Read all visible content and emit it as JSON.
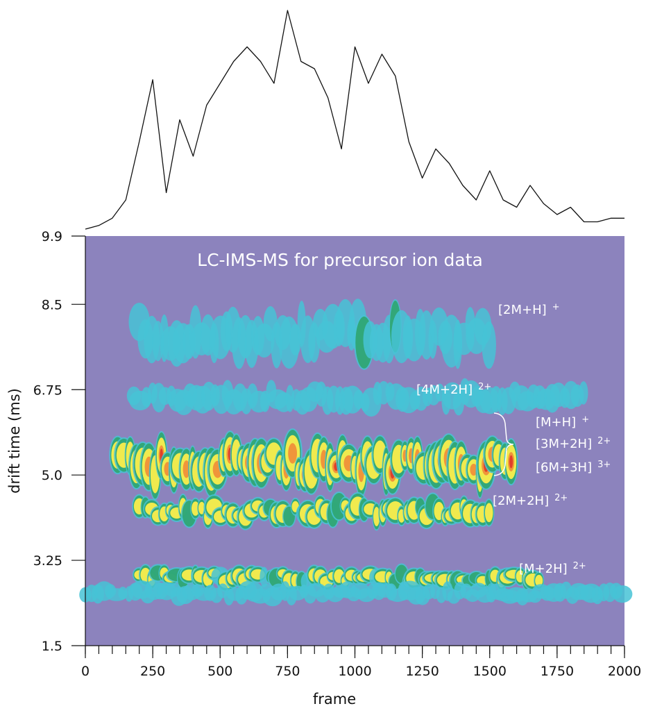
{
  "chart_data": [
    {
      "type": "line",
      "color": "#111111",
      "x": [
        0,
        50,
        100,
        150,
        200,
        250,
        300,
        350,
        400,
        450,
        500,
        550,
        600,
        650,
        700,
        750,
        800,
        850,
        900,
        950,
        1000,
        1050,
        1100,
        1150,
        1200,
        1250,
        1300,
        1350,
        1400,
        1450,
        1500,
        1550,
        1600,
        1650,
        1700,
        1750,
        1800,
        1850,
        1900,
        1950,
        2000
      ],
      "values": [
        0,
        5,
        15,
        40,
        120,
        205,
        50,
        150,
        100,
        170,
        200,
        230,
        250,
        230,
        200,
        300,
        230,
        220,
        180,
        110,
        250,
        200,
        240,
        210,
        120,
        70,
        110,
        90,
        60,
        40,
        80,
        40,
        30,
        60,
        35,
        20,
        30,
        10,
        10,
        15,
        15
      ]
    },
    {
      "type": "heatmap",
      "title": "LC-IMS-MS for precursor ion data",
      "background": "#8c83bd",
      "x_label": "frame",
      "y_label": "drift time (ms)",
      "xlim": [
        0,
        2000
      ],
      "xticks": [
        0,
        250,
        500,
        750,
        1000,
        1250,
        1500,
        1750,
        2000
      ],
      "x_minor_step": 50,
      "ylim": [
        1.5,
        9.9
      ],
      "yticks": [
        1.5,
        3.25,
        {
          "value": 5,
          "label": "5.0"
        },
        6.75,
        8.5,
        9.9
      ],
      "bands": [
        {
          "frames": [
            200,
            1500
          ],
          "drift": [
            7.5,
            8.3
          ],
          "intensity": 0.3
        },
        {
          "frames": [
            180,
            1850
          ],
          "drift": [
            6.4,
            6.8
          ],
          "intensity": 0.25
        },
        {
          "frames": [
            120,
            1600
          ],
          "drift": [
            4.85,
            5.6
          ],
          "intensity": 1.0
        },
        {
          "frames": [
            200,
            1500
          ],
          "drift": [
            4.05,
            4.45
          ],
          "intensity": 0.7
        },
        {
          "frames": [
            200,
            1700
          ],
          "drift": [
            2.75,
            3.05
          ],
          "intensity": 0.6
        },
        {
          "frames": [
            0,
            2000
          ],
          "drift": [
            2.45,
            2.7
          ],
          "intensity": 0.2
        }
      ],
      "annotations": [
        {
          "text": "[2M+H]",
          "charge": "+"
        },
        {
          "text": "[4M+2H]",
          "charge": "2+"
        },
        {
          "text": "[M+H]",
          "charge": "+"
        },
        {
          "text": "[3M+2H]",
          "charge": "2+"
        },
        {
          "text": "[6M+3H]",
          "charge": "3+"
        },
        {
          "text": "[2M+2H]",
          "charge": "2+"
        },
        {
          "text": "[M+2H]",
          "charge": "2+"
        }
      ]
    }
  ]
}
